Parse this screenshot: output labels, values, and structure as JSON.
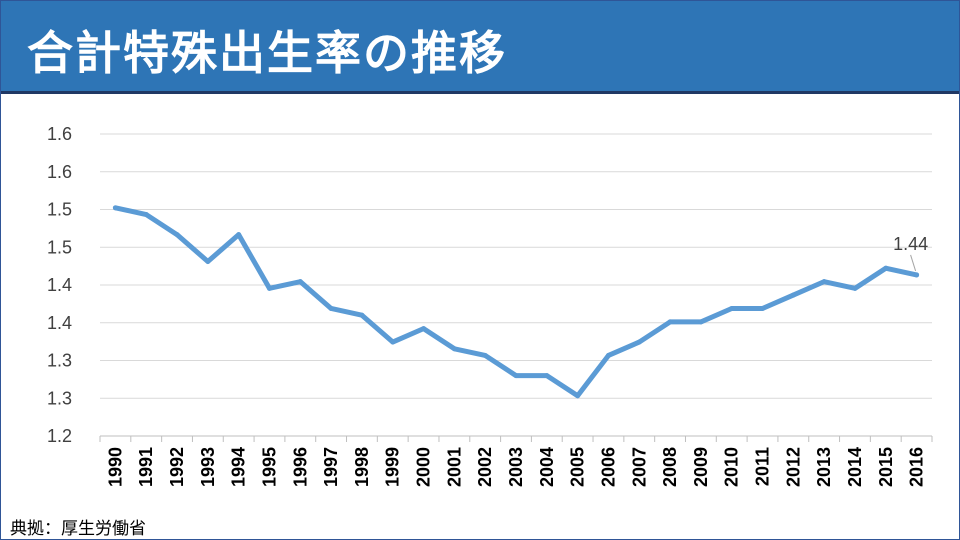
{
  "header": {
    "title": "合計特殊出生率の推移"
  },
  "source": "典拠：厚生労働省",
  "colors": {
    "title_bar": "#2e75b6",
    "title_bar_border": "#203864",
    "line": "#5b9bd5",
    "grid": "#d9d9d9"
  },
  "chart_data": {
    "type": "line",
    "title": "",
    "xlabel": "",
    "ylabel": "",
    "categories": [
      "1990",
      "1991",
      "1992",
      "1993",
      "1994",
      "1995",
      "1996",
      "1997",
      "1998",
      "1999",
      "2000",
      "2001",
      "2002",
      "2003",
      "2004",
      "2005",
      "2006",
      "2007",
      "2008",
      "2009",
      "2010",
      "2011",
      "2012",
      "2013",
      "2014",
      "2015",
      "2016"
    ],
    "y_tick_labels": [
      "1.6",
      "1.6",
      "1.5",
      "1.5",
      "1.4",
      "1.4",
      "1.3",
      "1.3",
      "1.2"
    ],
    "ylim": [
      1.2,
      1.65
    ],
    "grid": true,
    "legend": "none",
    "series": [
      {
        "values": [
          1.54,
          1.53,
          1.5,
          1.46,
          1.5,
          1.42,
          1.43,
          1.39,
          1.38,
          1.34,
          1.36,
          1.33,
          1.32,
          1.29,
          1.29,
          1.26,
          1.32,
          1.34,
          1.37,
          1.37,
          1.39,
          1.39,
          1.41,
          1.43,
          1.42,
          1.45,
          1.44
        ]
      }
    ],
    "annotations": [
      {
        "category": "2016",
        "text": "1.44"
      }
    ]
  }
}
